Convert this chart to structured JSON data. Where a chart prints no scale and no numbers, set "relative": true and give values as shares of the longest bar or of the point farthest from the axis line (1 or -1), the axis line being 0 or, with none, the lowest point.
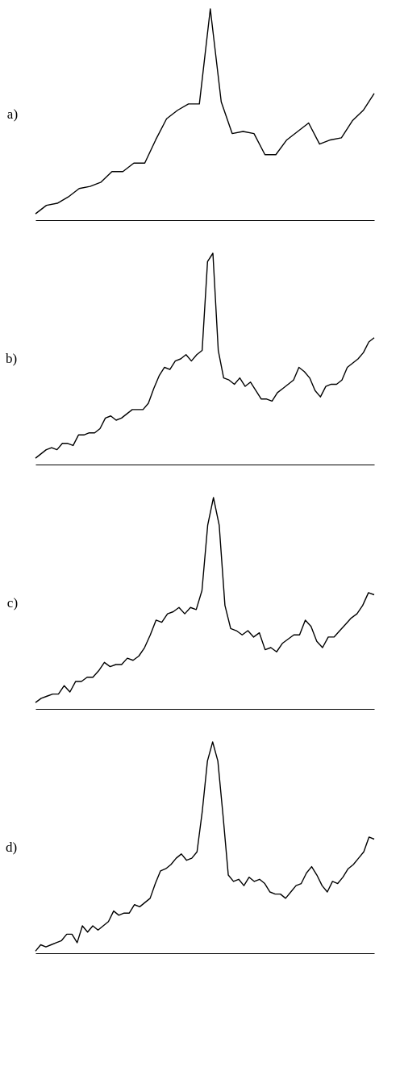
{
  "chart_data": [
    {
      "type": "line",
      "title": "a)",
      "relative": true,
      "tick_labels": false,
      "categories": [
        null,
        null,
        null,
        null,
        null,
        null,
        null,
        null,
        null,
        null,
        null,
        null,
        null,
        null,
        null,
        null,
        null,
        null,
        null,
        null,
        null,
        null,
        null,
        null,
        null,
        null,
        null,
        null,
        null,
        null,
        null,
        null
      ],
      "series": [
        {
          "color": "#000000",
          "values": [
            0.03,
            0.07,
            0.08,
            0.11,
            0.15,
            0.16,
            0.18,
            0.23,
            0.23,
            0.27,
            0.27,
            0.38,
            0.48,
            0.52,
            0.55,
            0.55,
            1,
            0.56,
            0.41,
            0.42,
            0.41,
            0.31,
            0.31,
            0.38,
            0.42,
            0.46,
            0.36,
            0.38,
            0.39,
            0.47,
            0.52,
            0.6
          ]
        }
      ]
    },
    {
      "type": "line",
      "title": "b)",
      "relative": true,
      "tick_labels": false,
      "categories": [
        null,
        null,
        null,
        null,
        null,
        null,
        null,
        null,
        null,
        null,
        null,
        null,
        null,
        null,
        null,
        null,
        null,
        null,
        null,
        null,
        null,
        null,
        null,
        null,
        null,
        null,
        null,
        null,
        null,
        null,
        null,
        null,
        null,
        null,
        null,
        null,
        null,
        null,
        null,
        null,
        null,
        null,
        null,
        null,
        null,
        null,
        null,
        null,
        null,
        null,
        null,
        null,
        null,
        null,
        null,
        null,
        null,
        null,
        null,
        null,
        null,
        null,
        null,
        null
      ],
      "series": [
        {
          "color": "#000000",
          "values": [
            0.03,
            0.05,
            0.07,
            0.08,
            0.07,
            0.1,
            0.1,
            0.09,
            0.14,
            0.14,
            0.15,
            0.15,
            0.17,
            0.22,
            0.23,
            0.21,
            0.22,
            0.24,
            0.26,
            0.26,
            0.26,
            0.29,
            0.36,
            0.42,
            0.46,
            0.45,
            0.49,
            0.5,
            0.52,
            0.49,
            0.52,
            0.54,
            0.96,
            1,
            0.54,
            0.41,
            0.4,
            0.38,
            0.41,
            0.37,
            0.39,
            0.35,
            0.31,
            0.31,
            0.3,
            0.34,
            0.36,
            0.38,
            0.4,
            0.46,
            0.44,
            0.41,
            0.35,
            0.32,
            0.37,
            0.38,
            0.38,
            0.4,
            0.46,
            0.48,
            0.5,
            0.53,
            0.58,
            0.6
          ]
        }
      ]
    },
    {
      "type": "line",
      "title": "c)",
      "relative": true,
      "tick_labels": false,
      "categories": [
        null,
        null,
        null,
        null,
        null,
        null,
        null,
        null,
        null,
        null,
        null,
        null,
        null,
        null,
        null,
        null,
        null,
        null,
        null,
        null,
        null,
        null,
        null,
        null,
        null,
        null,
        null,
        null,
        null,
        null,
        null,
        null,
        null,
        null,
        null,
        null,
        null,
        null,
        null,
        null,
        null,
        null,
        null,
        null,
        null,
        null,
        null,
        null,
        null,
        null,
        null,
        null,
        null,
        null,
        null,
        null,
        null,
        null,
        null,
        null
      ],
      "series": [
        {
          "color": "#000000",
          "values": [
            0.03,
            0.05,
            0.06,
            0.07,
            0.07,
            0.11,
            0.08,
            0.13,
            0.13,
            0.15,
            0.15,
            0.18,
            0.22,
            0.2,
            0.21,
            0.21,
            0.24,
            0.23,
            0.25,
            0.29,
            0.35,
            0.42,
            0.41,
            0.45,
            0.46,
            0.48,
            0.45,
            0.48,
            0.47,
            0.56,
            0.87,
            1,
            0.87,
            0.49,
            0.38,
            0.37,
            0.35,
            0.37,
            0.34,
            0.36,
            0.28,
            0.29,
            0.27,
            0.31,
            0.33,
            0.35,
            0.35,
            0.42,
            0.39,
            0.32,
            0.29,
            0.34,
            0.34,
            0.37,
            0.4,
            0.43,
            0.45,
            0.49,
            0.55,
            0.54
          ]
        }
      ]
    },
    {
      "type": "line",
      "title": "d)",
      "relative": true,
      "tick_labels": false,
      "categories": [
        null,
        null,
        null,
        null,
        null,
        null,
        null,
        null,
        null,
        null,
        null,
        null,
        null,
        null,
        null,
        null,
        null,
        null,
        null,
        null,
        null,
        null,
        null,
        null,
        null,
        null,
        null,
        null,
        null,
        null,
        null,
        null,
        null,
        null,
        null,
        null,
        null,
        null,
        null,
        null,
        null,
        null,
        null,
        null,
        null,
        null,
        null,
        null,
        null,
        null,
        null,
        null,
        null,
        null,
        null,
        null,
        null,
        null,
        null,
        null,
        null,
        null,
        null,
        null,
        null,
        null
      ],
      "series": [
        {
          "color": "#000000",
          "values": [
            0.01,
            0.04,
            0.03,
            0.04,
            0.05,
            0.06,
            0.09,
            0.09,
            0.05,
            0.13,
            0.1,
            0.13,
            0.11,
            0.13,
            0.15,
            0.2,
            0.18,
            0.19,
            0.19,
            0.23,
            0.22,
            0.24,
            0.26,
            0.33,
            0.39,
            0.4,
            0.42,
            0.45,
            0.47,
            0.44,
            0.45,
            0.48,
            0.67,
            0.91,
            1,
            0.91,
            0.65,
            0.37,
            0.34,
            0.35,
            0.32,
            0.36,
            0.34,
            0.35,
            0.33,
            0.29,
            0.28,
            0.28,
            0.26,
            0.29,
            0.32,
            0.33,
            0.38,
            0.41,
            0.37,
            0.32,
            0.29,
            0.34,
            0.33,
            0.36,
            0.4,
            0.42,
            0.45,
            0.48,
            0.55,
            0.54
          ]
        }
      ]
    }
  ]
}
